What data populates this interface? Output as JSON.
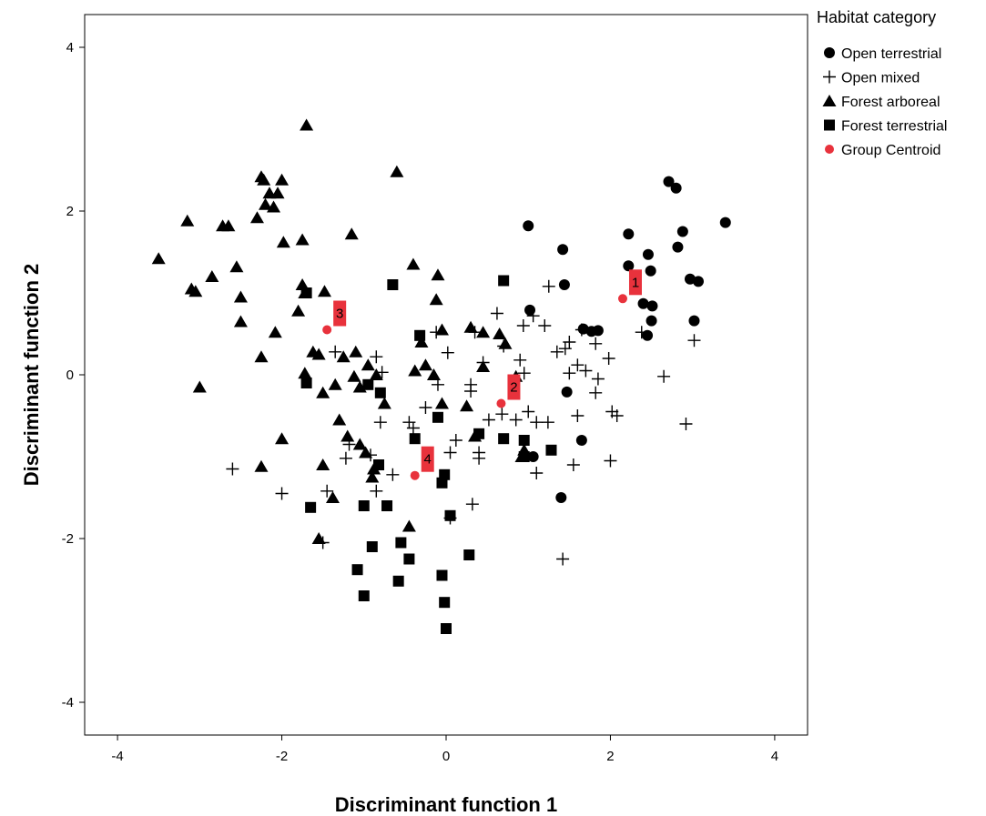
{
  "chart_data": {
    "type": "scatter",
    "xlabel": "Discriminant function 1",
    "ylabel": "Discriminant function 2",
    "xlim": [
      -4.4,
      4.4
    ],
    "ylim": [
      -4.4,
      4.4
    ],
    "xticks": [
      -4,
      -2,
      0,
      2,
      4
    ],
    "yticks": [
      -4,
      -2,
      0,
      2,
      4
    ],
    "grid": false,
    "legend": {
      "title": "Habitat category",
      "position": "right"
    },
    "colors": {
      "points": "#000000",
      "centroid": "#e8323c",
      "label_box": "#e8323c"
    },
    "series": [
      {
        "name": "Open terrestrial",
        "marker": "circle",
        "points": [
          [
            1.0,
            1.82
          ],
          [
            1.42,
            1.53
          ],
          [
            1.44,
            1.1
          ],
          [
            1.02,
            0.79
          ],
          [
            1.67,
            0.56
          ],
          [
            1.77,
            0.53
          ],
          [
            1.85,
            0.54
          ],
          [
            2.22,
            1.72
          ],
          [
            2.22,
            1.33
          ],
          [
            2.46,
            1.47
          ],
          [
            2.49,
            1.27
          ],
          [
            2.71,
            2.36
          ],
          [
            2.8,
            2.28
          ],
          [
            2.88,
            1.75
          ],
          [
            2.82,
            1.56
          ],
          [
            3.4,
            1.86
          ],
          [
            2.97,
            1.17
          ],
          [
            3.07,
            1.14
          ],
          [
            2.4,
            0.87
          ],
          [
            2.51,
            0.84
          ],
          [
            2.5,
            0.66
          ],
          [
            2.45,
            0.48
          ],
          [
            3.02,
            0.66
          ],
          [
            1.47,
            -0.21
          ],
          [
            1.06,
            -1.0
          ],
          [
            1.4,
            -1.5
          ],
          [
            1.65,
            -0.8
          ]
        ]
      },
      {
        "name": "Open mixed",
        "marker": "plus",
        "points": [
          [
            -2.6,
            -1.15
          ],
          [
            -2.0,
            -1.45
          ],
          [
            -1.5,
            -2.05
          ],
          [
            -1.45,
            -1.42
          ],
          [
            -1.35,
            0.28
          ],
          [
            -1.18,
            -0.85
          ],
          [
            -1.22,
            -1.02
          ],
          [
            -0.85,
            0.22
          ],
          [
            -0.78,
            0.03
          ],
          [
            -0.8,
            -0.58
          ],
          [
            -0.92,
            -0.98
          ],
          [
            -0.85,
            -1.42
          ],
          [
            -0.65,
            -1.22
          ],
          [
            -0.45,
            -0.58
          ],
          [
            -0.4,
            -0.65
          ],
          [
            -0.25,
            -0.4
          ],
          [
            0.02,
            0.27
          ],
          [
            -0.12,
            0.52
          ],
          [
            0.05,
            -0.95
          ],
          [
            0.12,
            -0.8
          ],
          [
            0.05,
            -1.75
          ],
          [
            0.3,
            -0.12
          ],
          [
            0.35,
            0.52
          ],
          [
            0.4,
            -1.02
          ],
          [
            0.45,
            0.15
          ],
          [
            0.4,
            -0.95
          ],
          [
            0.32,
            -1.58
          ],
          [
            0.3,
            -0.2
          ],
          [
            0.52,
            -0.55
          ],
          [
            0.62,
            0.75
          ],
          [
            0.68,
            -0.48
          ],
          [
            0.85,
            -0.55
          ],
          [
            0.9,
            0.18
          ],
          [
            0.94,
            0.6
          ],
          [
            1.06,
            0.72
          ],
          [
            1.2,
            0.6
          ],
          [
            1.25,
            1.08
          ],
          [
            1.1,
            -0.58
          ],
          [
            1.24,
            -0.58
          ],
          [
            1.1,
            -1.2
          ],
          [
            1.35,
            0.28
          ],
          [
            1.45,
            0.32
          ],
          [
            1.5,
            0.02
          ],
          [
            1.5,
            0.4
          ],
          [
            1.6,
            0.12
          ],
          [
            1.7,
            0.05
          ],
          [
            1.65,
            0.55
          ],
          [
            1.82,
            0.38
          ],
          [
            1.85,
            -0.05
          ],
          [
            1.82,
            -0.22
          ],
          [
            1.98,
            0.2
          ],
          [
            2.02,
            -0.45
          ],
          [
            2.08,
            -0.5
          ],
          [
            1.6,
            -0.5
          ],
          [
            1.55,
            -1.1
          ],
          [
            2.0,
            -1.05
          ],
          [
            2.38,
            0.52
          ],
          [
            2.65,
            -0.02
          ],
          [
            3.02,
            0.42
          ],
          [
            2.92,
            -0.6
          ],
          [
            1.42,
            -2.25
          ],
          [
            1.0,
            -0.45
          ],
          [
            0.95,
            0.02
          ],
          [
            0.7,
            0.35
          ],
          [
            -0.1,
            -0.12
          ]
        ]
      },
      {
        "name": "Forest arboreal",
        "marker": "triangle",
        "points": [
          [
            -1.7,
            3.05
          ],
          [
            -0.6,
            2.48
          ],
          [
            -2.25,
            2.42
          ],
          [
            -2.22,
            2.38
          ],
          [
            -2.15,
            2.22
          ],
          [
            -2.2,
            2.08
          ],
          [
            -2.05,
            2.22
          ],
          [
            -2.0,
            2.38
          ],
          [
            -2.1,
            2.05
          ],
          [
            -2.3,
            1.92
          ],
          [
            -1.98,
            1.62
          ],
          [
            -1.75,
            1.65
          ],
          [
            -1.15,
            1.72
          ],
          [
            -2.72,
            1.82
          ],
          [
            -2.65,
            1.82
          ],
          [
            -3.15,
            1.88
          ],
          [
            -3.5,
            1.42
          ],
          [
            -2.55,
            1.32
          ],
          [
            -2.85,
            1.2
          ],
          [
            -3.1,
            1.05
          ],
          [
            -3.05,
            1.02
          ],
          [
            -2.5,
            0.95
          ],
          [
            -2.5,
            0.65
          ],
          [
            -2.08,
            0.52
          ],
          [
            -1.75,
            1.1
          ],
          [
            -1.72,
            1.0
          ],
          [
            -1.48,
            1.02
          ],
          [
            -1.8,
            0.78
          ],
          [
            -1.62,
            0.28
          ],
          [
            -1.55,
            0.25
          ],
          [
            -1.25,
            0.22
          ],
          [
            -1.1,
            0.28
          ],
          [
            -2.25,
            0.22
          ],
          [
            -0.4,
            1.35
          ],
          [
            -0.1,
            1.22
          ],
          [
            -0.12,
            0.92
          ],
          [
            -0.05,
            0.55
          ],
          [
            -0.3,
            0.4
          ],
          [
            -0.38,
            0.05
          ],
          [
            -0.25,
            0.12
          ],
          [
            -0.15,
            0.0
          ],
          [
            -0.95,
            0.12
          ],
          [
            -0.85,
            0.0
          ],
          [
            -0.75,
            -0.35
          ],
          [
            -1.05,
            -0.15
          ],
          [
            -1.12,
            -0.02
          ],
          [
            -1.72,
            0.02
          ],
          [
            -1.5,
            -0.22
          ],
          [
            -1.35,
            -0.12
          ],
          [
            -1.3,
            -0.55
          ],
          [
            -1.2,
            -0.75
          ],
          [
            -1.05,
            -0.85
          ],
          [
            -0.98,
            -0.95
          ],
          [
            -0.88,
            -1.15
          ],
          [
            -0.9,
            -1.25
          ],
          [
            -1.5,
            -1.1
          ],
          [
            -1.38,
            -1.5
          ],
          [
            -1.55,
            -2.0
          ],
          [
            -2.0,
            -0.78
          ],
          [
            -2.25,
            -1.12
          ],
          [
            -3.0,
            -0.15
          ],
          [
            -0.05,
            -0.35
          ],
          [
            0.25,
            -0.38
          ],
          [
            0.35,
            -0.75
          ],
          [
            0.3,
            0.58
          ],
          [
            0.45,
            0.52
          ],
          [
            0.45,
            0.1
          ],
          [
            0.65,
            0.5
          ],
          [
            0.72,
            0.38
          ],
          [
            0.85,
            -0.02
          ],
          [
            0.95,
            -0.92
          ],
          [
            0.92,
            -1.0
          ],
          [
            -0.45,
            -1.85
          ]
        ]
      },
      {
        "name": "Forest terrestrial",
        "marker": "square",
        "points": [
          [
            0.7,
            1.15
          ],
          [
            -0.65,
            1.1
          ],
          [
            -1.7,
            1.0
          ],
          [
            -0.32,
            0.48
          ],
          [
            -1.7,
            -0.1
          ],
          [
            -0.95,
            -0.12
          ],
          [
            -0.8,
            -0.22
          ],
          [
            -0.38,
            -0.78
          ],
          [
            -0.1,
            -0.52
          ],
          [
            0.4,
            -0.72
          ],
          [
            0.7,
            -0.78
          ],
          [
            0.95,
            -0.8
          ],
          [
            0.95,
            -1.0
          ],
          [
            1.28,
            -0.92
          ],
          [
            -0.82,
            -1.1
          ],
          [
            -0.02,
            -1.22
          ],
          [
            -0.05,
            -1.32
          ],
          [
            0.05,
            -1.72
          ],
          [
            -1.65,
            -1.62
          ],
          [
            -1.0,
            -1.6
          ],
          [
            -0.72,
            -1.6
          ],
          [
            -0.9,
            -2.1
          ],
          [
            -0.55,
            -2.05
          ],
          [
            -0.45,
            -2.25
          ],
          [
            -0.58,
            -2.52
          ],
          [
            -1.08,
            -2.38
          ],
          [
            -1.0,
            -2.7
          ],
          [
            -0.05,
            -2.45
          ],
          [
            -0.02,
            -2.78
          ],
          [
            0.0,
            -3.1
          ],
          [
            0.28,
            -2.2
          ]
        ]
      }
    ],
    "centroids": [
      {
        "label": "1",
        "x": 2.15,
        "y": 0.93
      },
      {
        "label": "2",
        "x": 0.67,
        "y": -0.35
      },
      {
        "label": "3",
        "x": -1.45,
        "y": 0.55
      },
      {
        "label": "4",
        "x": -0.38,
        "y": -1.23
      }
    ],
    "centroid_legend_label": "Group Centroid"
  }
}
